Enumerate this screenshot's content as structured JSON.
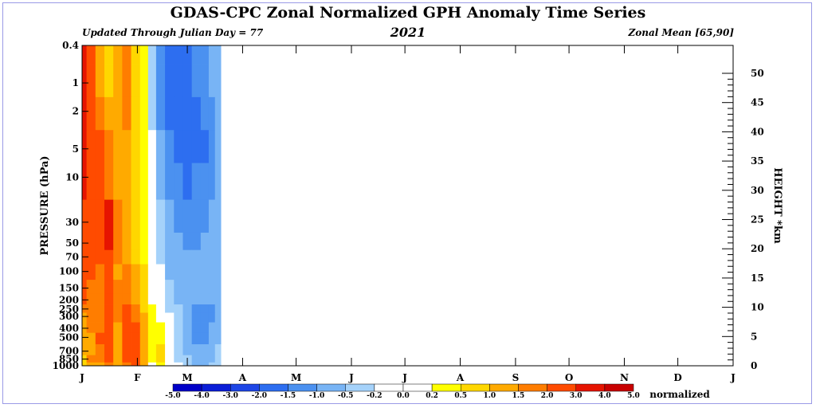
{
  "chart_data": {
    "type": "heatmap",
    "title": "GDAS-CPC Zonal Normalized GPH Anomaly Time Series",
    "subtitle_left": "Updated Through Julian Day = 77",
    "subtitle_center": "2021",
    "subtitle_right": "Zonal Mean [65,90]",
    "ylabel": "PRESSURE (hPa)",
    "ylabel_right": "HEIGHT *km",
    "month_labels": [
      "J",
      "F",
      "M",
      "A",
      "M",
      "J",
      "J",
      "A",
      "S",
      "O",
      "N",
      "D",
      "J"
    ],
    "pressure_levels": [
      0.4,
      1,
      2,
      5,
      10,
      30,
      50,
      70,
      100,
      150,
      200,
      250,
      300,
      400,
      500,
      700,
      850,
      1000
    ],
    "pressure_tick_labels": [
      "0.4",
      "1",
      "2",
      "5",
      "10",
      "30",
      "50",
      "70",
      "100",
      "150",
      "200",
      "250",
      "300",
      "400",
      "500",
      "700",
      "850",
      "1000"
    ],
    "height_ticks": [
      0,
      5,
      10,
      15,
      20,
      25,
      30,
      35,
      40,
      45,
      50
    ],
    "height_tick_labels": [
      "0",
      "5",
      "10",
      "15",
      "20",
      "25",
      "30",
      "35",
      "40",
      "45",
      "50"
    ],
    "data_through_julian_day": 77,
    "colorbar": {
      "label": "normalized",
      "levels": [
        "-5.0",
        "-4.0",
        "-3.0",
        "-2.0",
        "-1.5",
        "-1.0",
        "-0.5",
        "-0.2",
        "0.0",
        "0.2",
        "0.5",
        "1.0",
        "1.5",
        "2.0",
        "3.0",
        "4.0",
        "5.0"
      ],
      "colors": [
        "#0000c8",
        "#0a1ed7",
        "#1e46e6",
        "#2d6ef0",
        "#4b91f0",
        "#78b4f5",
        "#a5d2fa",
        "#ffffff",
        "#ffffff",
        "#ffff00",
        "#ffd700",
        "#ffaa00",
        "#ff7d00",
        "#ff4b00",
        "#e61400",
        "#c80000"
      ]
    },
    "days": [
      1,
      6,
      11,
      16,
      21,
      26,
      31,
      36,
      40,
      45,
      50,
      55,
      60,
      65,
      70,
      74,
      77
    ],
    "anomaly_rows": [
      [
        3.0,
        2.5,
        1.2,
        0.6,
        1.2,
        1.6,
        0.8,
        0.2,
        -0.4,
        -1.2,
        -1.6,
        -1.8,
        -1.8,
        -1.5,
        -1.3,
        -1.0,
        -0.6
      ],
      [
        3.0,
        2.5,
        1.4,
        0.8,
        1.3,
        1.6,
        0.9,
        0.3,
        -0.4,
        -1.2,
        -1.6,
        -1.9,
        -1.9,
        -1.5,
        -1.3,
        -1.0,
        -0.6
      ],
      [
        3.0,
        2.5,
        1.6,
        1.0,
        1.3,
        1.5,
        0.9,
        0.4,
        -0.3,
        -1.1,
        -1.6,
        -2.0,
        -2.0,
        -1.6,
        -1.3,
        -1.1,
        -0.8
      ],
      [
        3.0,
        2.5,
        2.0,
        1.5,
        1.3,
        1.3,
        0.8,
        0.4,
        -0.2,
        -1.0,
        -1.5,
        -2.0,
        -2.0,
        -1.8,
        -1.6,
        -1.4,
        -1.0
      ],
      [
        3.0,
        2.5,
        2.0,
        1.6,
        1.3,
        1.2,
        0.7,
        0.2,
        -0.2,
        -0.8,
        -1.2,
        -1.5,
        -1.6,
        -1.5,
        -1.4,
        -1.2,
        -1.0
      ],
      [
        2.5,
        2.5,
        2.2,
        3.0,
        1.5,
        1.2,
        0.7,
        0.3,
        -0.1,
        -0.5,
        -0.9,
        -1.1,
        -1.2,
        -1.2,
        -1.1,
        -1.0,
        -0.8
      ],
      [
        2.5,
        2.5,
        2.2,
        3.0,
        1.6,
        1.3,
        0.8,
        0.4,
        0.0,
        -0.4,
        -0.8,
        -1.0,
        -1.1,
        -1.1,
        -1.0,
        -0.9,
        -0.8
      ],
      [
        2.5,
        2.2,
        2.0,
        2.6,
        1.5,
        1.4,
        0.8,
        0.4,
        0.0,
        -0.3,
        -0.7,
        -0.9,
        -1.0,
        -1.0,
        -0.9,
        -0.8,
        -0.8
      ],
      [
        2.5,
        2.0,
        1.8,
        2.2,
        1.4,
        1.5,
        1.0,
        0.5,
        0.0,
        -0.2,
        -0.6,
        -0.8,
        -0.9,
        -0.9,
        -0.8,
        -0.7,
        -0.7
      ],
      [
        2.2,
        1.8,
        1.6,
        2.0,
        1.6,
        1.6,
        1.1,
        0.6,
        0.0,
        -0.2,
        -0.5,
        -0.7,
        -0.8,
        -0.8,
        -0.7,
        -0.8,
        -0.8
      ],
      [
        2.0,
        1.6,
        1.5,
        2.0,
        1.8,
        1.8,
        1.2,
        0.7,
        0.1,
        -0.1,
        -0.4,
        -0.6,
        -0.8,
        -1.0,
        -1.0,
        -1.0,
        -0.8
      ],
      [
        1.6,
        1.5,
        1.6,
        2.0,
        1.8,
        2.0,
        1.5,
        0.8,
        0.2,
        0.0,
        -0.3,
        -0.5,
        -0.7,
        -1.2,
        -1.2,
        -1.1,
        -0.8
      ],
      [
        1.4,
        1.8,
        1.6,
        2.0,
        1.6,
        2.2,
        1.8,
        1.0,
        0.3,
        0.1,
        -0.2,
        -0.5,
        -0.7,
        -1.3,
        -1.2,
        -1.1,
        -0.8
      ],
      [
        1.2,
        1.6,
        1.8,
        2.2,
        1.4,
        2.5,
        2.2,
        1.2,
        0.4,
        0.2,
        -0.1,
        -0.5,
        -0.8,
        -1.3,
        -1.2,
        -1.0,
        -0.7
      ],
      [
        1.4,
        1.2,
        2.0,
        2.0,
        1.2,
        2.5,
        2.4,
        1.3,
        0.4,
        0.3,
        0.0,
        -0.5,
        -0.8,
        -1.2,
        -1.2,
        -0.9,
        -0.6
      ],
      [
        1.0,
        1.2,
        1.8,
        2.2,
        1.2,
        2.2,
        2.4,
        1.4,
        0.3,
        0.6,
        0.1,
        -0.4,
        -0.6,
        -1.0,
        -1.0,
        -0.8,
        -0.5
      ],
      [
        0.8,
        1.5,
        1.6,
        2.0,
        1.1,
        2.0,
        2.2,
        1.3,
        0.2,
        0.5,
        0.1,
        -0.3,
        -0.5,
        -0.8,
        -0.8,
        -0.6,
        -0.4
      ],
      [
        0.6,
        1.2,
        1.4,
        1.8,
        1.0,
        1.8,
        2.0,
        1.2,
        0.1,
        0.4,
        0.0,
        -0.2,
        -0.4,
        -0.6,
        -0.6,
        -0.5,
        -0.3
      ]
    ]
  }
}
